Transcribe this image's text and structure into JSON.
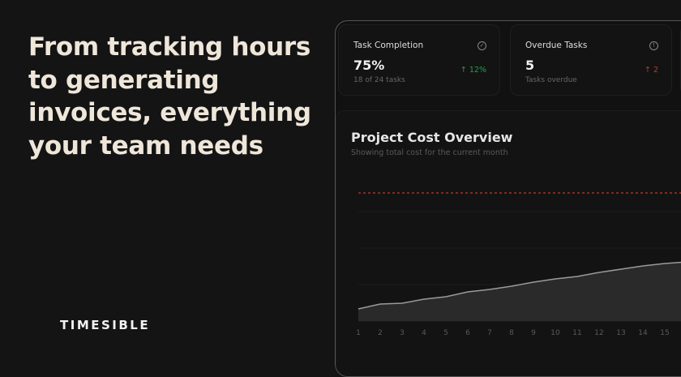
{
  "headline": "From tracking hours to generating invoices, everything your team needs",
  "brand": "TIMESIBLE",
  "cards": [
    {
      "title": "Task Completion",
      "value": "75%",
      "sub": "18 of 24 tasks",
      "delta": "↑ 12%",
      "delta_color": "#22a04a",
      "icon": "check-circle-icon"
    },
    {
      "title": "Overdue Tasks",
      "value": "5",
      "sub": "Tasks overdue",
      "delta": "↑ 2",
      "delta_color": "#c0392b",
      "icon": "alert-circle-icon"
    }
  ],
  "panel": {
    "title": "Project Cost Overview",
    "subtitle": "Showing total cost for the current month"
  },
  "chart_data": {
    "type": "area",
    "x": [
      1,
      2,
      3,
      4,
      5,
      6,
      7,
      8,
      9,
      10,
      11,
      12,
      13,
      14,
      15
    ],
    "values": [
      15,
      21,
      22,
      27,
      30,
      36,
      39,
      43,
      48,
      52,
      55,
      60,
      64,
      68,
      71
    ],
    "reference_line": {
      "value": 158,
      "color": "#c0392b",
      "style": "dashed"
    },
    "ylim": [
      0,
      180
    ],
    "grid": true,
    "line_color": "#9a9a9a",
    "fill_color": "#2a2a2a"
  }
}
